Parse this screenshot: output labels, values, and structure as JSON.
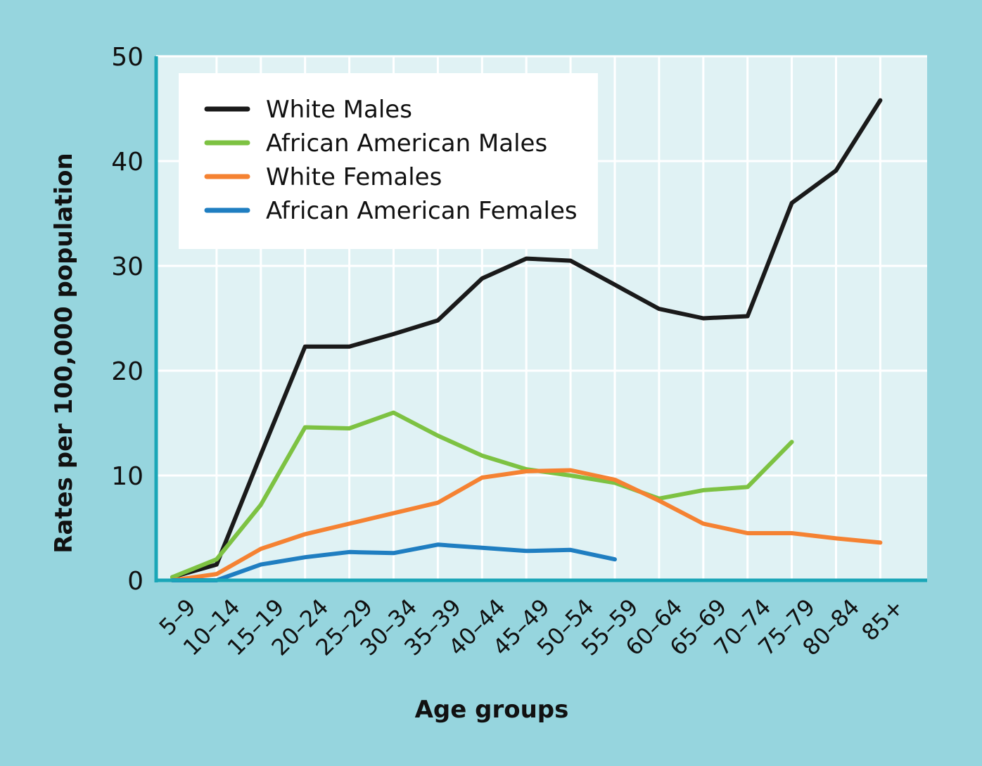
{
  "chart_data": {
    "type": "line",
    "title": "",
    "xlabel": "Age groups",
    "ylabel": "Rates per 100,000 population",
    "ylim": [
      0,
      50
    ],
    "yticks": [
      0,
      10,
      20,
      30,
      40,
      50
    ],
    "grid": true,
    "legend_position": "top-left",
    "categories": [
      "5–9",
      "10–14",
      "15–19",
      "20–24",
      "25–29",
      "30–34",
      "35–39",
      "40–44",
      "45–49",
      "50–54",
      "55–59",
      "60–64",
      "65–69",
      "70–74",
      "75–79",
      "80–84",
      "85+"
    ],
    "series": [
      {
        "name": "White Males",
        "color": "#1a1a1a",
        "values": [
          0.3,
          1.5,
          12,
          22.3,
          22.3,
          23.5,
          24.8,
          28.8,
          30.7,
          30.5,
          28.2,
          25.9,
          25,
          25.2,
          36,
          39.1,
          45.8
        ]
      },
      {
        "name": "African American Males",
        "color": "#7dc242",
        "values": [
          0.3,
          2,
          7.2,
          14.6,
          14.5,
          16,
          13.8,
          11.9,
          10.6,
          10,
          9.3,
          7.8,
          8.6,
          8.9,
          13.2,
          null,
          null
        ]
      },
      {
        "name": "White Females",
        "color": "#f58232",
        "values": [
          0,
          0.6,
          3,
          4.4,
          5.4,
          6.4,
          7.4,
          9.8,
          10.4,
          10.5,
          9.6,
          7.6,
          5.4,
          4.5,
          4.5,
          4,
          3.6
        ]
      },
      {
        "name": "African American Females",
        "color": "#1f7ec1",
        "values": [
          0,
          0,
          1.5,
          2.2,
          2.7,
          2.6,
          3.4,
          3.1,
          2.8,
          2.9,
          2,
          null,
          null,
          null,
          null,
          null,
          null
        ]
      }
    ]
  }
}
